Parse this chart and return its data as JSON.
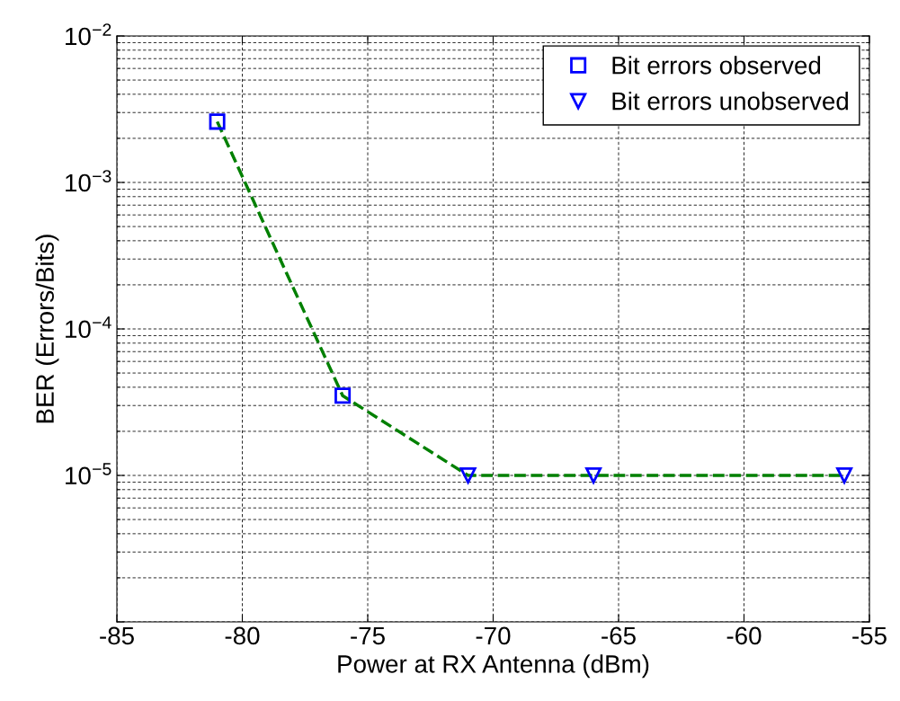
{
  "chart_data": {
    "type": "scatter",
    "xlabel": "Power at RX Antenna (dBm)",
    "ylabel": "BER (Errors/Bits)",
    "series": [
      {
        "name": "Bit errors observed",
        "color": "#0000ff",
        "marker": "square",
        "x": [
          -81,
          -76
        ],
        "values": [
          0.0026,
          3.5e-05
        ]
      },
      {
        "name": "Bit errors unobserved",
        "color": "#0000ff",
        "marker": "triangle",
        "x": [
          -71,
          -66,
          -56
        ],
        "values": [
          1e-05,
          1e-05,
          1e-05
        ]
      },
      {
        "type": "line",
        "color": "#008000",
        "line_style": "dashed",
        "marker": "none",
        "x": [
          -81,
          -76,
          -71,
          -66,
          -56
        ],
        "values": [
          0.0026,
          3.5e-05,
          1e-05,
          1e-05,
          1e-05
        ]
      }
    ],
    "log": "y",
    "xlim": [
      -85,
      -55
    ],
    "xticks": [
      -85,
      -80,
      -75,
      -70,
      -65,
      -60,
      -55
    ],
    "ylim": [
      1e-06,
      0.01
    ],
    "yticks": [
      {
        "value": 1e-06,
        "label": null
      },
      {
        "value": 1e-05,
        "label": "10$^{−5}$"
      },
      {
        "value": 0.0001,
        "label": "10$^{−4}$"
      },
      {
        "value": 0.001,
        "label": "10$^{−3}$"
      },
      {
        "value": 0.01,
        "label": "10$^{−2}$"
      }
    ],
    "grid": true,
    "legend": "top right"
  }
}
